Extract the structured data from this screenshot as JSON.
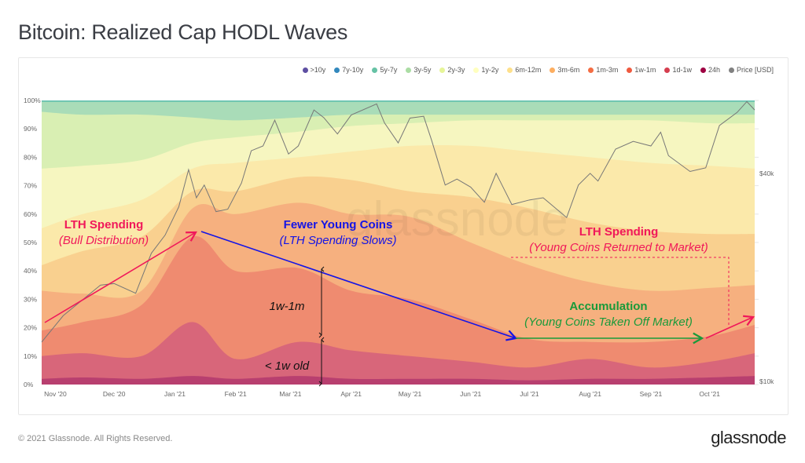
{
  "title": "Bitcoin: Realized Cap HODL Waves",
  "footer": "© 2021 Glassnode. All Rights Reserved.",
  "brand": "glassnode",
  "watermark": "glassnode",
  "chart_data": {
    "type": "area",
    "stacked": true,
    "title": "Bitcoin: Realized Cap HODL Waves",
    "legend_position": "top-right",
    "legend": [
      {
        "name": ">10y",
        "color": "#5e4fa2"
      },
      {
        "name": "7y-10y",
        "color": "#3288bd"
      },
      {
        "name": "5y-7y",
        "color": "#66c2a5"
      },
      {
        "name": "3y-5y",
        "color": "#abdda4"
      },
      {
        "name": "2y-3y",
        "color": "#e6f598"
      },
      {
        "name": "1y-2y",
        "color": "#ffffbf"
      },
      {
        "name": "6m-12m",
        "color": "#fee08b"
      },
      {
        "name": "3m-6m",
        "color": "#fdae61"
      },
      {
        "name": "1m-3m",
        "color": "#f46d43"
      },
      {
        "name": "1w-1m",
        "color": "#ef5a3f"
      },
      {
        "name": "1d-1w",
        "color": "#d53e4f"
      },
      {
        "name": "24h",
        "color": "#9e0142"
      },
      {
        "name": "Price [USD]",
        "color": "#808080"
      }
    ],
    "x_range": [
      "2020-10-25",
      "2021-10-24"
    ],
    "x_ticks": [
      {
        "date": "2020-11-01",
        "label": "Nov '20"
      },
      {
        "date": "2020-12-01",
        "label": "Dec '20"
      },
      {
        "date": "2021-01-01",
        "label": "Jan '21"
      },
      {
        "date": "2021-02-01",
        "label": "Feb '21"
      },
      {
        "date": "2021-03-01",
        "label": "Mar '21"
      },
      {
        "date": "2021-04-01",
        "label": "Apr '21"
      },
      {
        "date": "2021-05-01",
        "label": "May '21"
      },
      {
        "date": "2021-06-01",
        "label": "Jun '21"
      },
      {
        "date": "2021-07-01",
        "label": "Jul '21"
      },
      {
        "date": "2021-08-01",
        "label": "Aug '21"
      },
      {
        "date": "2021-09-01",
        "label": "Sep '21"
      },
      {
        "date": "2021-10-01",
        "label": "Oct '21"
      }
    ],
    "y_left": {
      "range": [
        0,
        100
      ],
      "ticks": [
        0,
        10,
        20,
        30,
        40,
        50,
        60,
        70,
        80,
        90,
        100
      ],
      "unit": "%"
    },
    "y_right": {
      "scale": "log",
      "range": [
        9800,
        65000
      ],
      "ticks": [
        {
          "value": 10000,
          "label": "$10k"
        },
        {
          "value": 40000,
          "label": "$40k"
        }
      ]
    },
    "dates": [
      "2020-10-25",
      "2020-11-15",
      "2020-12-15",
      "2021-01-10",
      "2021-02-01",
      "2021-03-05",
      "2021-04-01",
      "2021-05-01",
      "2021-06-01",
      "2021-07-01",
      "2021-08-01",
      "2021-09-01",
      "2021-10-01",
      "2021-10-24"
    ],
    "series": [
      {
        "name": "24h",
        "fill": "#b83f6f",
        "values": [
          2,
          2.5,
          2,
          3,
          2,
          3,
          2,
          2,
          2,
          1.5,
          2,
          2,
          2.5,
          3
        ]
      },
      {
        "name": "1d-1w",
        "fill": "#d8667a",
        "values": [
          8,
          8.5,
          8,
          19,
          7,
          12,
          10,
          8,
          6,
          4.5,
          7,
          4,
          5.5,
          8
        ]
      },
      {
        "name": "1w-1m",
        "fill": "#ef8b70",
        "values": [
          9,
          11,
          18,
          30,
          31,
          26,
          21,
          20,
          15,
          10,
          6,
          9,
          9,
          10
        ]
      },
      {
        "name": "1m-3m",
        "fill": "#f6b07f",
        "values": [
          14,
          10,
          5,
          10,
          20,
          23,
          27,
          29,
          27,
          26,
          21,
          18,
          17,
          14
        ]
      },
      {
        "name": "3m-6m",
        "fill": "#f9d08f",
        "values": [
          9,
          15,
          19,
          6,
          8,
          9,
          12,
          9,
          16,
          20,
          21,
          21,
          19,
          18
        ]
      },
      {
        "name": "6m-12m",
        "fill": "#fbe9aa",
        "values": [
          13,
          13,
          13,
          8,
          10,
          7,
          10,
          16,
          18,
          20,
          23,
          24,
          24,
          23
        ]
      },
      {
        "name": "1y-2y",
        "fill": "#f6f6c0",
        "values": [
          21,
          17,
          14,
          9,
          9,
          9,
          9,
          8,
          9,
          11,
          13,
          15,
          15,
          16
        ]
      },
      {
        "name": "2y-3y",
        "fill": "#d9efb3",
        "values": [
          20,
          18,
          16,
          9,
          6,
          5,
          4,
          3,
          2,
          2,
          2,
          2,
          3,
          3
        ]
      },
      {
        "name": "3y-5y",
        "fill": "#a9dcb8",
        "values": [
          3.5,
          4.5,
          4.5,
          5.5,
          6.5,
          5.5,
          4.5,
          4.5,
          4.5,
          4.5,
          4.5,
          4.5,
          4.5,
          4.5
        ]
      },
      {
        "name": "5y-7y",
        "fill": "#66c2b0",
        "values": [
          0.5,
          0.5,
          0.5,
          0.5,
          0.5,
          0.5,
          0.5,
          0.5,
          0.5,
          0.5,
          0.5,
          0.5,
          0.5,
          0.5
        ]
      }
    ],
    "price": {
      "name": "Price [USD]",
      "color": "#777777",
      "points": [
        [
          "2020-10-25",
          13000
        ],
        [
          "2020-11-05",
          15500
        ],
        [
          "2020-11-24",
          19000
        ],
        [
          "2020-12-01",
          19200
        ],
        [
          "2020-12-12",
          18000
        ],
        [
          "2020-12-20",
          23500
        ],
        [
          "2020-12-27",
          26500
        ],
        [
          "2021-01-03",
          32000
        ],
        [
          "2021-01-08",
          41000
        ],
        [
          "2021-01-12",
          34000
        ],
        [
          "2021-01-16",
          37000
        ],
        [
          "2021-01-22",
          31000
        ],
        [
          "2021-01-28",
          31500
        ],
        [
          "2021-02-04",
          37500
        ],
        [
          "2021-02-09",
          46500
        ],
        [
          "2021-02-15",
          48000
        ],
        [
          "2021-02-21",
          57000
        ],
        [
          "2021-02-28",
          45500
        ],
        [
          "2021-03-05",
          48000
        ],
        [
          "2021-03-13",
          61000
        ],
        [
          "2021-03-18",
          58000
        ],
        [
          "2021-03-25",
          52000
        ],
        [
          "2021-04-01",
          59000
        ],
        [
          "2021-04-14",
          63500
        ],
        [
          "2021-04-18",
          56000
        ],
        [
          "2021-04-25",
          49000
        ],
        [
          "2021-05-01",
          57800
        ],
        [
          "2021-05-08",
          58500
        ],
        [
          "2021-05-12",
          50000
        ],
        [
          "2021-05-19",
          37000
        ],
        [
          "2021-05-25",
          38500
        ],
        [
          "2021-06-01",
          36500
        ],
        [
          "2021-06-08",
          33000
        ],
        [
          "2021-06-14",
          40000
        ],
        [
          "2021-06-22",
          32500
        ],
        [
          "2021-07-01",
          33500
        ],
        [
          "2021-07-08",
          34000
        ],
        [
          "2021-07-20",
          29800
        ],
        [
          "2021-07-26",
          37000
        ],
        [
          "2021-08-01",
          40000
        ],
        [
          "2021-08-05",
          38000
        ],
        [
          "2021-08-14",
          47000
        ],
        [
          "2021-08-23",
          49500
        ],
        [
          "2021-09-01",
          48000
        ],
        [
          "2021-09-06",
          52600
        ],
        [
          "2021-09-10",
          45000
        ],
        [
          "2021-09-21",
          40500
        ],
        [
          "2021-09-29",
          41500
        ],
        [
          "2021-10-06",
          55000
        ],
        [
          "2021-10-15",
          60000
        ],
        [
          "2021-10-20",
          64500
        ],
        [
          "2021-10-24",
          61000
        ]
      ]
    },
    "annotations": [
      {
        "title": "LTH Spending",
        "subtitle": "(Bull Distribution)",
        "color": "#f0185a"
      },
      {
        "title": "Fewer Young Coins",
        "subtitle": "(LTH Spending Slows)",
        "color": "#1414e6"
      },
      {
        "title": "LTH Spending",
        "subtitle": "(Young Coins Returned to Market)",
        "color": "#f0185a"
      },
      {
        "title": "Accumulation",
        "subtitle": "(Young Coins Taken Off Market)",
        "color": "#1a9a3a"
      },
      {
        "label": "1w-1m",
        "color": "#111111"
      },
      {
        "label": "< 1w old",
        "color": "#111111"
      }
    ]
  }
}
